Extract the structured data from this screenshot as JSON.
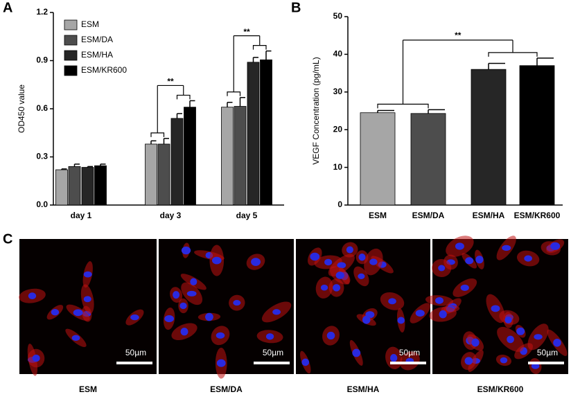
{
  "chart_data": [
    {
      "type": "bar",
      "label": "A",
      "ylabel": "OD450 value",
      "categories": [
        "day 1",
        "day 3",
        "day 5"
      ],
      "series": [
        {
          "name": "ESM",
          "color": "#a6a6a6",
          "values": [
            0.22,
            0.38,
            0.61
          ],
          "errors": [
            0.005,
            0.02,
            0.03
          ]
        },
        {
          "name": "ESM/DA",
          "color": "#4d4d4d",
          "values": [
            0.24,
            0.38,
            0.615
          ],
          "errors": [
            0.015,
            0.035,
            0.055
          ]
        },
        {
          "name": "ESM/HA",
          "color": "#262626",
          "values": [
            0.235,
            0.54,
            0.89
          ],
          "errors": [
            0.005,
            0.03,
            0.03
          ]
        },
        {
          "name": "ESM/KR600",
          "color": "#000000",
          "values": [
            0.245,
            0.61,
            0.905
          ],
          "errors": [
            0.01,
            0.04,
            0.055
          ]
        }
      ],
      "ylim": [
        0,
        1.2
      ],
      "yticks": [
        {
          "value": 0,
          "label": "0.0"
        },
        0.3,
        0.6,
        0.9,
        {
          "value": 1.2,
          "label": "1.2"
        }
      ],
      "annotations": [
        "**",
        "**"
      ]
    },
    {
      "type": "bar",
      "label": "B",
      "ylabel": "VEGF Concentration (pg/mL)",
      "categories": [
        "ESM",
        "ESM/DA",
        "ESM/HA",
        "ESM/KR600"
      ],
      "values": [
        24.5,
        24.3,
        36,
        37
      ],
      "errors": [
        0.6,
        1,
        1.6,
        2
      ],
      "colors": [
        "#a6a6a6",
        "#4d4d4d",
        "#262626",
        "#000000"
      ],
      "ylim": [
        0,
        50
      ],
      "yticks": [
        0,
        10,
        20,
        30,
        40,
        50
      ],
      "annotations": [
        "**"
      ]
    }
  ],
  "panel_c": {
    "label": "C",
    "images": [
      {
        "label": "ESM",
        "scale_bar": "50µm"
      },
      {
        "label": "ESM/DA",
        "scale_bar": "50µm"
      },
      {
        "label": "ESM/HA",
        "scale_bar": "50µm"
      },
      {
        "label": "ESM/KR600",
        "scale_bar": "50µm"
      }
    ]
  }
}
